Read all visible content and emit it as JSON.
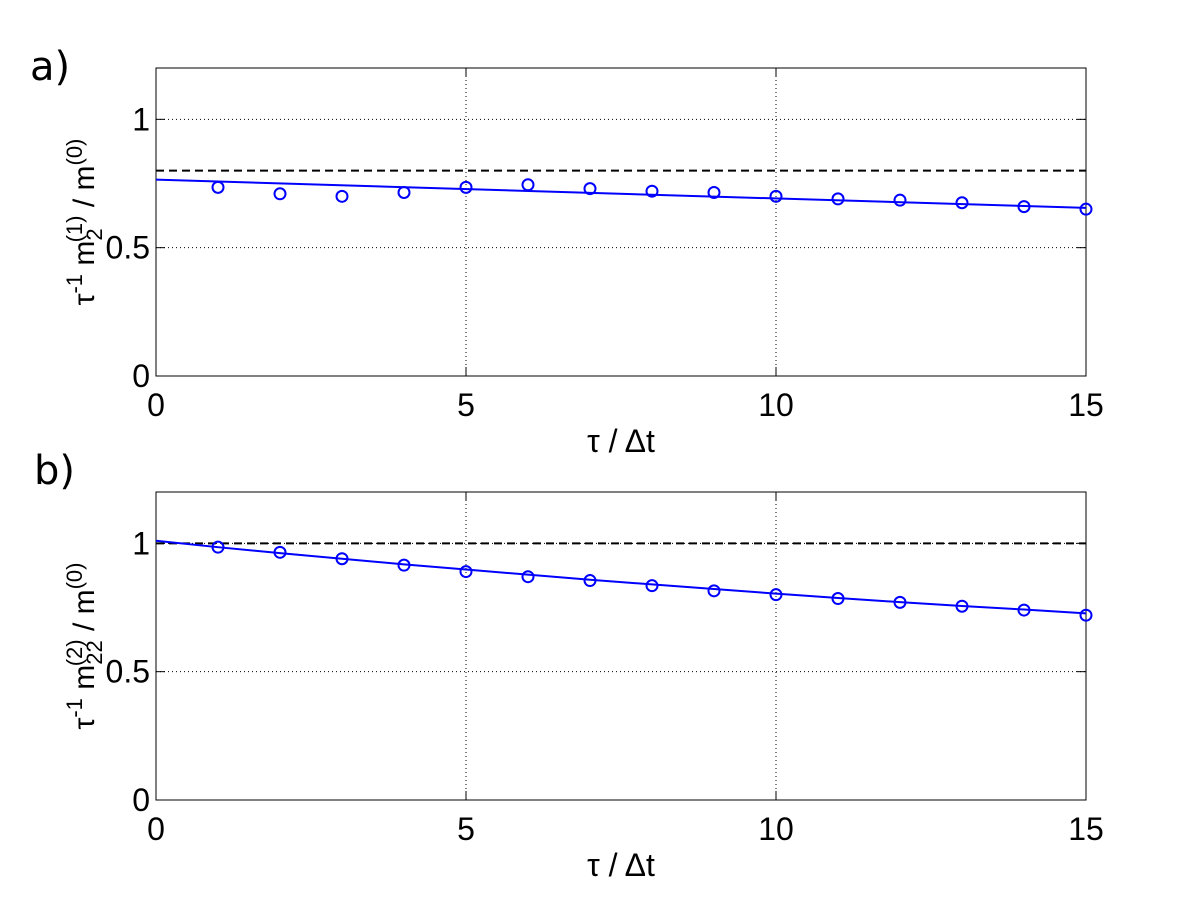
{
  "chart_data": [
    {
      "type": "scatter",
      "panel_label": "a)",
      "xlabel": "τ / Δt",
      "ylabel": {
        "base": "τ",
        "exp": "-1",
        "mid": " m",
        "sub": "2",
        "sup": "(1)",
        "rest": " / m",
        "sup2": "(0)"
      },
      "xlim": [
        0,
        15
      ],
      "ylim": [
        0,
        1.2
      ],
      "xticks": [
        0,
        5,
        10,
        15
      ],
      "yticks": [
        0,
        0.5,
        1
      ],
      "xtick_labels": [
        "0",
        "5",
        "10",
        "15"
      ],
      "ytick_labels": [
        "0",
        "0.5",
        "1"
      ],
      "grid": true,
      "reference_line": {
        "y": 0.8,
        "style": "dashed",
        "color": "#000000"
      },
      "fit_line": {
        "x": [
          0,
          15
        ],
        "y": [
          0.765,
          0.655
        ],
        "color": "#0000ff"
      },
      "series": [
        {
          "marker": "circle",
          "color": "#0000ff",
          "x": [
            1,
            2,
            3,
            4,
            5,
            6,
            7,
            8,
            9,
            10,
            11,
            12,
            13,
            14,
            15
          ],
          "y": [
            0.735,
            0.71,
            0.7,
            0.715,
            0.735,
            0.745,
            0.73,
            0.72,
            0.715,
            0.7,
            0.69,
            0.685,
            0.675,
            0.66,
            0.65
          ]
        }
      ]
    },
    {
      "type": "scatter",
      "panel_label": "b)",
      "xlabel": "τ / Δt",
      "ylabel": {
        "base": "τ",
        "exp": "-1",
        "mid": " m",
        "sub": "22",
        "sup": "(2)",
        "rest": " / m",
        "sup2": "(0)"
      },
      "xlim": [
        0,
        15
      ],
      "ylim": [
        0,
        1.2
      ],
      "xticks": [
        0,
        5,
        10,
        15
      ],
      "yticks": [
        0,
        0.5,
        1
      ],
      "xtick_labels": [
        "0",
        "5",
        "10",
        "15"
      ],
      "ytick_labels": [
        "0",
        "0.5",
        "1"
      ],
      "grid": true,
      "reference_line": {
        "y": 1.0,
        "style": "dashed",
        "color": "#000000"
      },
      "fit_line": {
        "x": [
          0,
          1,
          2,
          3,
          4,
          5,
          6,
          7,
          8,
          9,
          10,
          11,
          12,
          13,
          14,
          15
        ],
        "y": [
          1.01,
          0.985,
          0.962,
          0.94,
          0.918,
          0.898,
          0.878,
          0.858,
          0.84,
          0.822,
          0.804,
          0.787,
          0.771,
          0.756,
          0.742,
          0.727
        ],
        "color": "#0000ff"
      },
      "series": [
        {
          "marker": "circle",
          "color": "#0000ff",
          "x": [
            1,
            2,
            3,
            4,
            5,
            6,
            7,
            8,
            9,
            10,
            11,
            12,
            13,
            14,
            15
          ],
          "y": [
            0.985,
            0.965,
            0.94,
            0.915,
            0.89,
            0.87,
            0.855,
            0.835,
            0.815,
            0.8,
            0.785,
            0.77,
            0.755,
            0.74,
            0.72
          ]
        }
      ]
    }
  ]
}
